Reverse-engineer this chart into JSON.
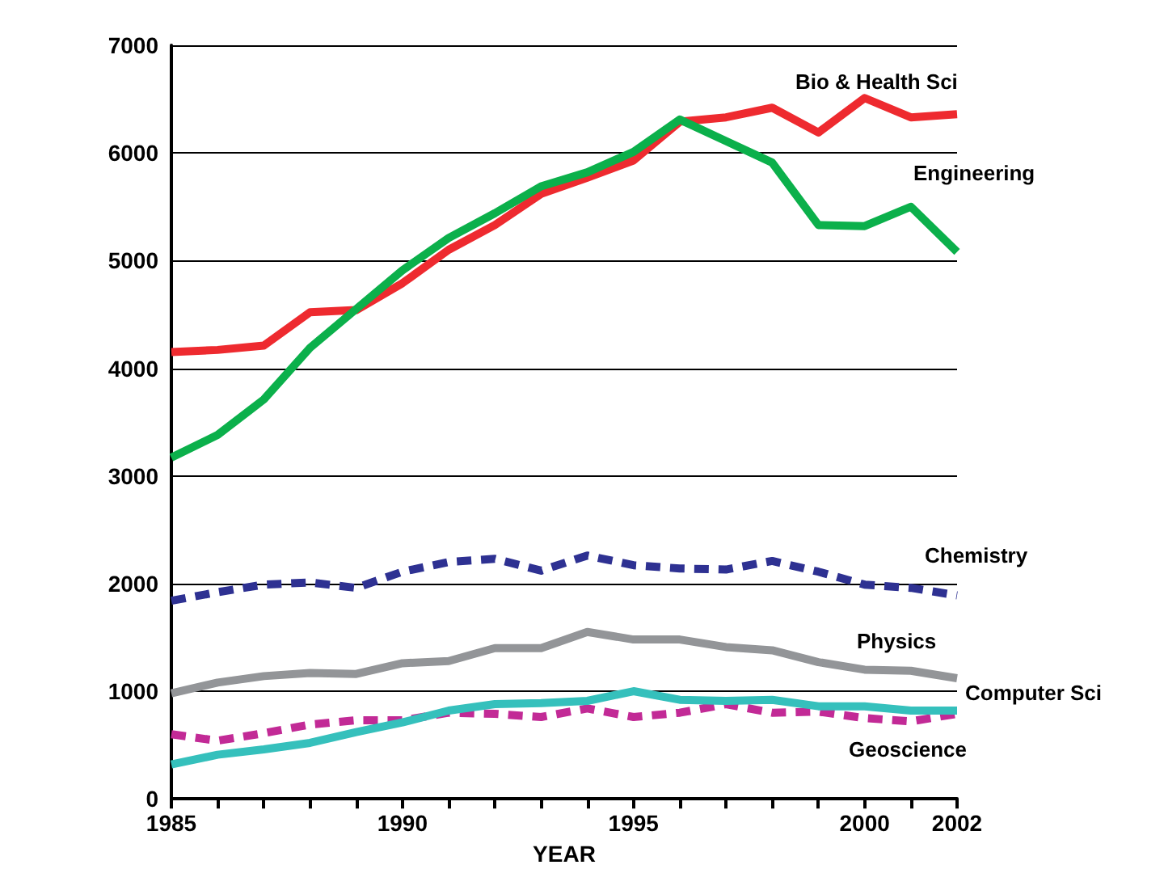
{
  "chart_data": {
    "type": "line",
    "xlabel": "YEAR",
    "x": [
      1985,
      1986,
      1987,
      1988,
      1989,
      1990,
      1991,
      1992,
      1993,
      1994,
      1995,
      1996,
      1997,
      1998,
      1999,
      2000,
      2001,
      2002
    ],
    "series": [
      {
        "name": "Bio & Health Sci",
        "color": "#ee2a2f",
        "values": [
          4150,
          4170,
          4210,
          4520,
          4540,
          4790,
          5100,
          5330,
          5620,
          5770,
          5930,
          6290,
          6330,
          6420,
          6190,
          6510,
          6330,
          6360
        ]
      },
      {
        "name": "Engineering",
        "color": "#0bb04b",
        "values": [
          3170,
          3380,
          3710,
          4190,
          4550,
          4910,
          5210,
          5440,
          5690,
          5820,
          6010,
          6310,
          6110,
          5910,
          5330,
          5320,
          5500,
          5080
        ]
      },
      {
        "name": "Chemistry",
        "color": "#2e3192",
        "line_style": "dashed",
        "values": [
          1840,
          1920,
          1990,
          2010,
          1960,
          2110,
          2200,
          2230,
          2120,
          2260,
          2170,
          2140,
          2130,
          2210,
          2110,
          1990,
          1960,
          1890
        ]
      },
      {
        "name": "Physics",
        "color": "#939598",
        "values": [
          980,
          1080,
          1140,
          1170,
          1160,
          1260,
          1280,
          1400,
          1400,
          1550,
          1480,
          1480,
          1410,
          1380,
          1270,
          1200,
          1190,
          1120
        ]
      },
      {
        "name": "Computer Sci",
        "color": "#35c0bc",
        "values": [
          320,
          410,
          460,
          520,
          620,
          710,
          820,
          880,
          890,
          910,
          1000,
          920,
          910,
          920,
          860,
          860,
          820,
          820
        ]
      },
      {
        "name": "Geoscience",
        "color": "#c22a96",
        "line_style": "dashed",
        "values": [
          600,
          540,
          610,
          690,
          730,
          730,
          800,
          790,
          760,
          840,
          760,
          800,
          880,
          800,
          810,
          750,
          720,
          790
        ]
      }
    ],
    "xlim": [
      1985,
      2002
    ],
    "xticks": [
      1985,
      {
        "value": 1986,
        "label": null
      },
      {
        "value": 1987,
        "label": null
      },
      {
        "value": 1988,
        "label": null
      },
      {
        "value": 1989,
        "label": null
      },
      1990,
      {
        "value": 1991,
        "label": null
      },
      {
        "value": 1992,
        "label": null
      },
      {
        "value": 1993,
        "label": null
      },
      {
        "value": 1994,
        "label": null
      },
      1995,
      {
        "value": 1996,
        "label": null
      },
      {
        "value": 1997,
        "label": null
      },
      {
        "value": 1998,
        "label": null
      },
      {
        "value": 1999,
        "label": null
      },
      2000,
      {
        "value": 2001,
        "label": null
      },
      2002
    ],
    "ylim": [
      0,
      7000
    ],
    "yticks": [
      0,
      1000,
      2000,
      3000,
      4000,
      5000,
      6000,
      7000
    ],
    "grid": "y",
    "legend": false,
    "marker": "none",
    "line_style": "solid"
  }
}
